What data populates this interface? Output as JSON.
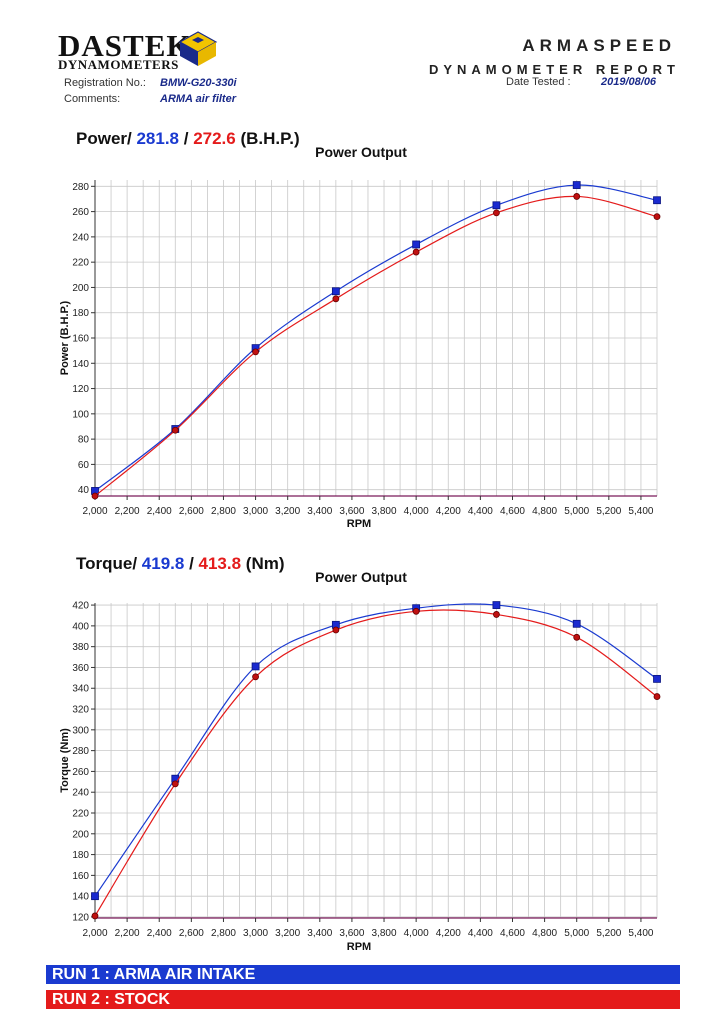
{
  "header": {
    "logo_main": "DASTEK",
    "logo_sub": "DYNAMOMETERS",
    "company": "ARMASPEED",
    "report_title": "DYNAMOMETER REPORT",
    "registration_label": "Registration No.:",
    "registration_value": "BMW-G20-330i",
    "comments_label": "Comments:",
    "comments_value": "ARMA air filter",
    "date_label": "Date Tested :",
    "date_value": "2019/08/06"
  },
  "power_header": {
    "prefix": "Power/ ",
    "run1": "281.8",
    "sep": " / ",
    "run2": "272.6",
    "unit": " (B.H.P.)"
  },
  "torque_header": {
    "prefix": "Torque/ ",
    "run1": "419.8",
    "sep": " / ",
    "run2": "413.8",
    "unit": " (Nm)"
  },
  "legend": {
    "run1": "RUN 1 : ARMA AIR INTAKE",
    "run2": "RUN 2 : STOCK",
    "run1_color": "#1a3ad0",
    "run2_color": "#e41b1b"
  },
  "chart_data": [
    {
      "type": "line",
      "title": "Power Output",
      "xlabel": "RPM",
      "ylabel": "Power (B.H.P.)",
      "xlim": [
        2000,
        5500
      ],
      "ylim": [
        35,
        285
      ],
      "xticks": [
        2000,
        2200,
        2400,
        2600,
        2800,
        3000,
        3200,
        3400,
        3600,
        3800,
        4000,
        4200,
        4400,
        4600,
        4800,
        5000,
        5200,
        5400
      ],
      "yticks": [
        40,
        60,
        80,
        100,
        120,
        140,
        160,
        180,
        200,
        220,
        240,
        260,
        280
      ],
      "grid": true,
      "series": [
        {
          "name": "RUN 1 : ARMA AIR INTAKE",
          "color": "#1a3ad0",
          "marker": "square",
          "x": [
            2000,
            2500,
            3000,
            3500,
            4000,
            4500,
            5000,
            5500
          ],
          "y": [
            39,
            88,
            152,
            197,
            234,
            265,
            281,
            269
          ]
        },
        {
          "name": "RUN 2 : STOCK",
          "color": "#e41b1b",
          "marker": "circle",
          "x": [
            2000,
            2500,
            3000,
            3500,
            4000,
            4500,
            5000,
            5500
          ],
          "y": [
            35,
            87,
            149,
            191,
            228,
            259,
            272,
            256
          ]
        }
      ]
    },
    {
      "type": "line",
      "title": "Power Output",
      "xlabel": "RPM",
      "ylabel": "Torque (Nm)",
      "xlim": [
        2000,
        5500
      ],
      "ylim": [
        119,
        422
      ],
      "xticks": [
        2000,
        2200,
        2400,
        2600,
        2800,
        3000,
        3200,
        3400,
        3600,
        3800,
        4000,
        4200,
        4400,
        4600,
        4800,
        5000,
        5200,
        5400
      ],
      "yticks": [
        120,
        140,
        160,
        180,
        200,
        220,
        240,
        260,
        280,
        300,
        320,
        340,
        360,
        380,
        400,
        420
      ],
      "grid": true,
      "series": [
        {
          "name": "RUN 1 : ARMA AIR INTAKE",
          "color": "#1a3ad0",
          "marker": "square",
          "x": [
            2000,
            2500,
            3000,
            3500,
            4000,
            4500,
            5000,
            5500
          ],
          "y": [
            140,
            253,
            361,
            401,
            417,
            420,
            402,
            349
          ]
        },
        {
          "name": "RUN 2 : STOCK",
          "color": "#e41b1b",
          "marker": "circle",
          "x": [
            2000,
            2500,
            3000,
            3500,
            4000,
            4500,
            5000,
            5500
          ],
          "y": [
            121,
            248,
            351,
            396,
            414,
            411,
            389,
            332
          ]
        }
      ]
    }
  ]
}
